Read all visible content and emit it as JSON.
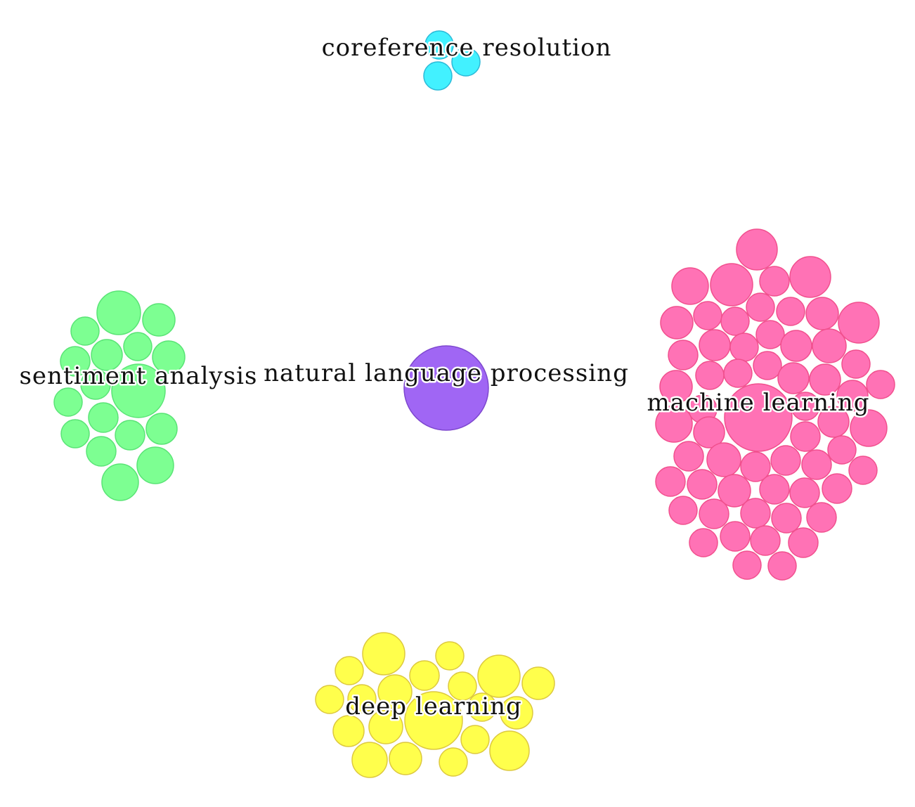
{
  "clusters": [
    {
      "id": "coreference",
      "label": "coreference resolution",
      "fill": "#42f1ff",
      "stroke": "#2bbad8"
    },
    {
      "id": "nlp",
      "label": "natural language processing",
      "fill": "#a066f4",
      "stroke": "#7e48cf"
    },
    {
      "id": "sentiment",
      "label": "sentiment analysis",
      "fill": "#7dff92",
      "stroke": "#5ae476"
    },
    {
      "id": "ml",
      "label": "machine learning",
      "fill": "#ff72b5",
      "stroke": "#f1508e"
    },
    {
      "id": "dl",
      "label": "deep learning",
      "fill": "#ffff4c",
      "stroke": "#ddc93e"
    }
  ]
}
